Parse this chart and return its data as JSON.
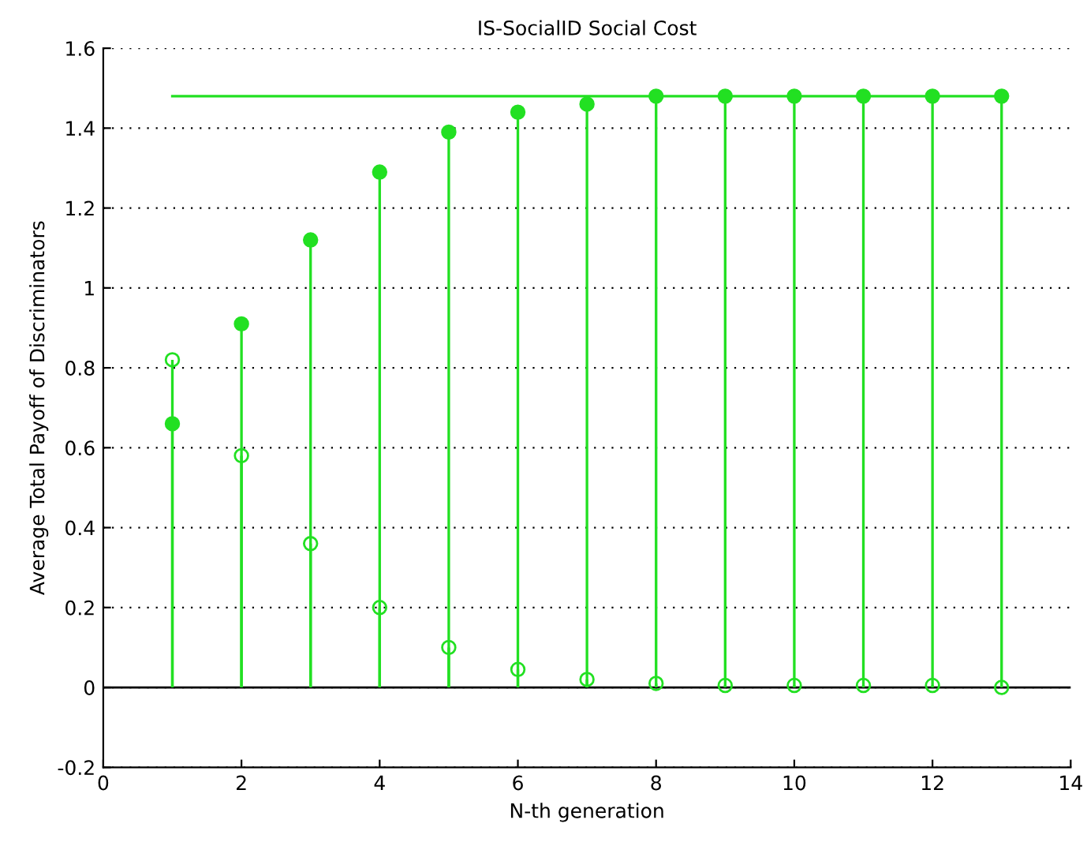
{
  "chart_data": {
    "type": "lollipop",
    "title": "IS-SocialID Social Cost",
    "xlabel": "N-th generation",
    "ylabel": "Average Total Payoff of Discriminators",
    "x": [
      1,
      2,
      3,
      4,
      5,
      6,
      7,
      8,
      9,
      10,
      11,
      12,
      13
    ],
    "series": [
      {
        "color": "#22e022",
        "marker": "circle",
        "values": [
          0.66,
          0.91,
          1.12,
          1.29,
          1.39,
          1.44,
          1.46,
          1.48,
          1.48,
          1.48,
          1.48,
          1.48,
          1.48
        ]
      },
      {
        "color": "#22e022",
        "marker": "open circle",
        "values": [
          0.82,
          0.58,
          0.36,
          0.2,
          0.1,
          0.045,
          0.02,
          0.01,
          0.005,
          0.005,
          0.005,
          0.005,
          0
        ]
      },
      {
        "type": "line",
        "color": "#22e022",
        "x": [
          1,
          13
        ],
        "values": [
          1.48,
          1.48
        ]
      }
    ],
    "xlim": [
      0,
      14
    ],
    "xticks": [
      0,
      2,
      4,
      6,
      8,
      10,
      12,
      14
    ],
    "ylim": [
      -0.2,
      1.6
    ],
    "yticks": [
      -0.2,
      0,
      0.2,
      0.4,
      0.6,
      0.8,
      1,
      1.2,
      1.4,
      1.6
    ],
    "grid": "y",
    "legend": false
  }
}
